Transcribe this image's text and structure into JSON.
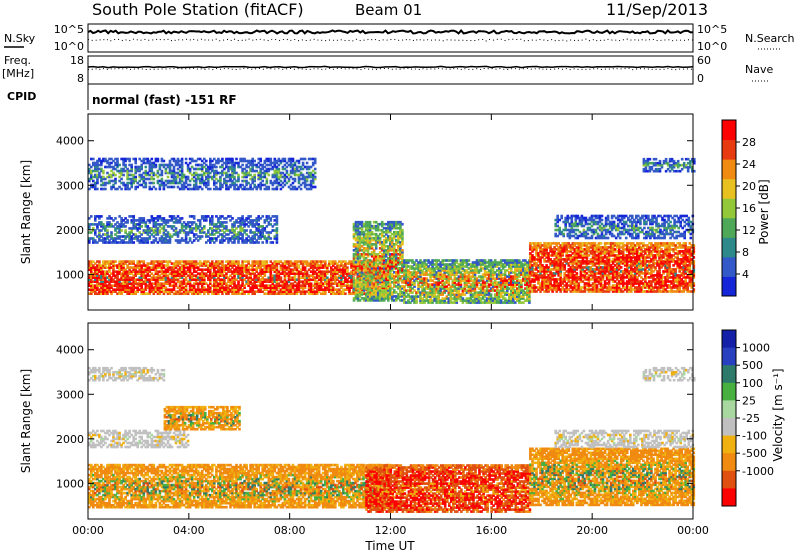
{
  "header": {
    "station": "South Pole Station (fitACF)",
    "beam": "Beam 01",
    "date": "11/Sep/2013"
  },
  "strips": {
    "nsky_label": "N.Sky",
    "nsky_ticks": [
      "10^5",
      "10^0"
    ],
    "nsearch_label": "N.Search",
    "nsearch_ticks": [
      "10^5",
      "10^0"
    ],
    "freq_label": "Freq.",
    "freq_unit": "[MHz]",
    "freq_ticks": [
      "18",
      "8"
    ],
    "nave_label": "Nave",
    "nave_ticks": [
      "60",
      "0"
    ],
    "cpid_label": "CPID",
    "cpid_text": "normal (fast) -151 RF"
  },
  "colors": {
    "power": [
      "#1426d8",
      "#3358c8",
      "#2e8a8a",
      "#4ea858",
      "#93c83a",
      "#e8c020",
      "#f08a10",
      "#e83a10",
      "#ff0000"
    ],
    "velocity": [
      "#1420a8",
      "#2840c0",
      "#2e7a6a",
      "#48b040",
      "#a8d8a0",
      "#c0c0c0",
      "#f0b010",
      "#f08a10",
      "#e05010",
      "#ff0000"
    ]
  },
  "chart_data": [
    {
      "type": "heatmap",
      "name": "power",
      "xlabel": "",
      "ylabel": "Slant Range [km]",
      "xlim": [
        "00:00",
        "24:00"
      ],
      "ylim": [
        200,
        4600
      ],
      "yticks": [
        1000,
        2000,
        3000,
        4000
      ],
      "xticks": [
        "00:00",
        "04:00",
        "08:00",
        "12:00",
        "16:00",
        "20:00",
        "00:00"
      ],
      "colorbar": {
        "label": "Power [dB]",
        "range": [
          0,
          32
        ],
        "ticks": [
          4,
          8,
          12,
          16,
          20,
          24,
          28
        ]
      },
      "bands": [
        {
          "hours": [
            0,
            12
          ],
          "range_km": [
            550,
            1300
          ],
          "level": "high"
        },
        {
          "hours": [
            10.5,
            12.5
          ],
          "range_km": [
            400,
            2200
          ],
          "level": "mixed"
        },
        {
          "hours": [
            12.5,
            17.5
          ],
          "range_km": [
            350,
            1300
          ],
          "level": "mixed"
        },
        {
          "hours": [
            17.5,
            24
          ],
          "range_km": [
            600,
            1700
          ],
          "level": "high"
        },
        {
          "hours": [
            0,
            7.5
          ],
          "range_km": [
            1700,
            2300
          ],
          "level": "low"
        },
        {
          "hours": [
            18.5,
            24
          ],
          "range_km": [
            1800,
            2300
          ],
          "level": "low"
        },
        {
          "hours": [
            0,
            9
          ],
          "range_km": [
            2900,
            3600
          ],
          "level": "low"
        },
        {
          "hours": [
            22,
            24
          ],
          "range_km": [
            3300,
            3600
          ],
          "level": "low"
        }
      ]
    },
    {
      "type": "heatmap",
      "name": "velocity",
      "xlabel": "Time UT",
      "ylabel": "Slant Range [km]",
      "xlim": [
        "00:00",
        "24:00"
      ],
      "ylim": [
        200,
        4600
      ],
      "yticks": [
        1000,
        2000,
        3000,
        4000
      ],
      "xticks": [
        "00:00",
        "04:00",
        "08:00",
        "12:00",
        "16:00",
        "20:00",
        "00:00"
      ],
      "colorbar": {
        "label": "Velocity [m s⁻¹]",
        "ticks": [
          "1000",
          "500",
          "100",
          "25",
          "-25",
          "-100",
          "-500",
          "-1000"
        ]
      },
      "bands": [
        {
          "hours": [
            0,
            12
          ],
          "range_km": [
            450,
            1400
          ],
          "level": "negative"
        },
        {
          "hours": [
            11,
            17.5
          ],
          "range_km": [
            350,
            1400
          ],
          "level": "strong-negative"
        },
        {
          "hours": [
            17.5,
            24
          ],
          "range_km": [
            500,
            1800
          ],
          "level": "negative"
        },
        {
          "hours": [
            0,
            4
          ],
          "range_km": [
            1800,
            2200
          ],
          "level": "near-zero"
        },
        {
          "hours": [
            18.5,
            24
          ],
          "range_km": [
            1800,
            2200
          ],
          "level": "near-zero"
        },
        {
          "hours": [
            3,
            6
          ],
          "range_km": [
            2200,
            2700
          ],
          "level": "negative"
        },
        {
          "hours": [
            0,
            3
          ],
          "range_km": [
            3300,
            3600
          ],
          "level": "near-zero"
        },
        {
          "hours": [
            22,
            24
          ],
          "range_km": [
            3300,
            3600
          ],
          "level": "near-zero"
        }
      ]
    }
  ]
}
